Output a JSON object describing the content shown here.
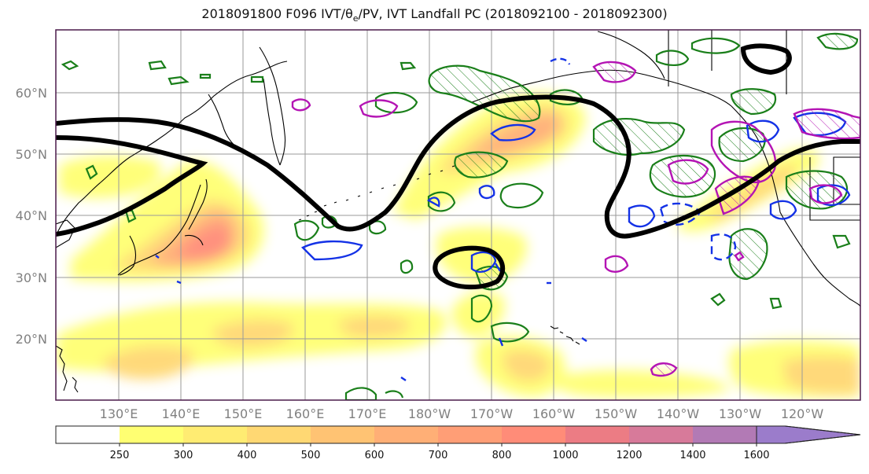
{
  "title_text": "2018091800 F096 IVT/θe/PV, IVT Landfall PC (2018092100 - 2018092300)",
  "map": {
    "lat_labels": [
      "60°N",
      "50°N",
      "40°N",
      "30°N",
      "20°N"
    ],
    "lon_labels": [
      "130°E",
      "140°E",
      "150°E",
      "160°E",
      "170°E",
      "180°W",
      "170°W",
      "160°W",
      "150°W",
      "140°W",
      "130°W",
      "120°W"
    ],
    "gridlines": true,
    "contour_colors": {
      "bold_contour": "#000000",
      "green_contour": "#1a7f1a",
      "blue_contour": "#1432e6",
      "magenta_contour": "#b414b4",
      "coastline": "#000000"
    }
  },
  "colorbar": {
    "labels": [
      "250",
      "300",
      "400",
      "500",
      "600",
      "700",
      "800",
      "1000",
      "1200",
      "1400",
      "1600"
    ],
    "colors": [
      "#ffffff",
      "#ffff72",
      "#ffec72",
      "#ffd873",
      "#ffc373",
      "#ffaf76",
      "#ff9e76",
      "#ff8c78",
      "#ec7c84",
      "#d77a9a",
      "#b27ab5",
      "#9b7ccb"
    ],
    "extend": "max"
  }
}
